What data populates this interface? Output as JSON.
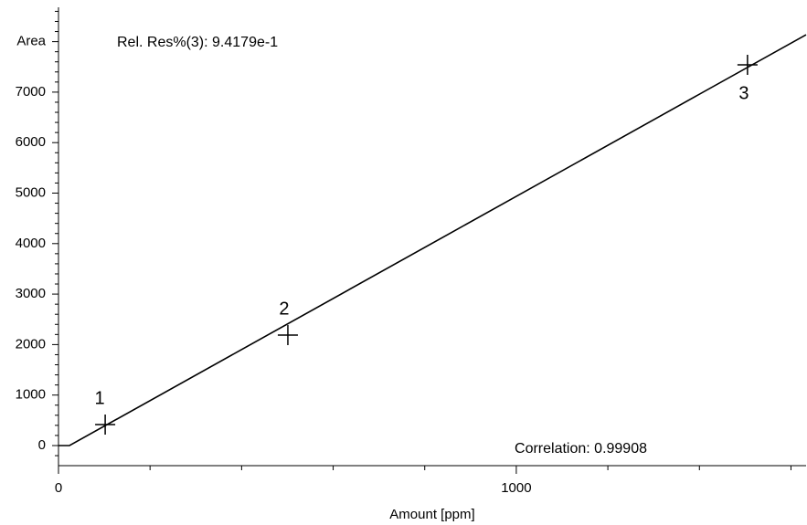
{
  "chart_data": {
    "type": "calibration",
    "x_label": "Amount [ppm]",
    "annotations": [
      "Rel. Res%(3): 9.4179e-1",
      "Correlation: 0.99908"
    ],
    "points": {
      "labels": [
        "1",
        "2",
        "3"
      ],
      "x": [
        102,
        501,
        1505
      ],
      "values": [
        416,
        2188,
        7541
      ],
      "color": "#000000"
    },
    "fit": {
      "x": [
        0,
        24,
        1633
      ],
      "values": [
        0,
        0,
        8137
      ],
      "color": "#000000"
    },
    "xlim": [
      0,
      1633
    ],
    "ylim": [
      -398,
      8680
    ],
    "xticks": [
      0,
      1000
    ],
    "xminorticks": [
      200,
      400,
      600,
      800,
      1200,
      1400,
      1600
    ],
    "yticks": [
      0,
      1000,
      2000,
      3000,
      4000,
      5000,
      6000,
      7000,
      {
        "value": 8000,
        "label": "Area"
      }
    ],
    "yminorticks": [
      -200,
      200,
      400,
      600,
      800,
      1200,
      1400,
      1600,
      1800,
      2200,
      2400,
      2600,
      2800,
      3200,
      3400,
      3600,
      3800,
      4200,
      4400,
      4600,
      4800,
      5200,
      5400,
      5600,
      5800,
      6200,
      6400,
      6600,
      6800,
      7200,
      7400,
      7600,
      7800,
      8200,
      8400,
      8600
    ]
  }
}
